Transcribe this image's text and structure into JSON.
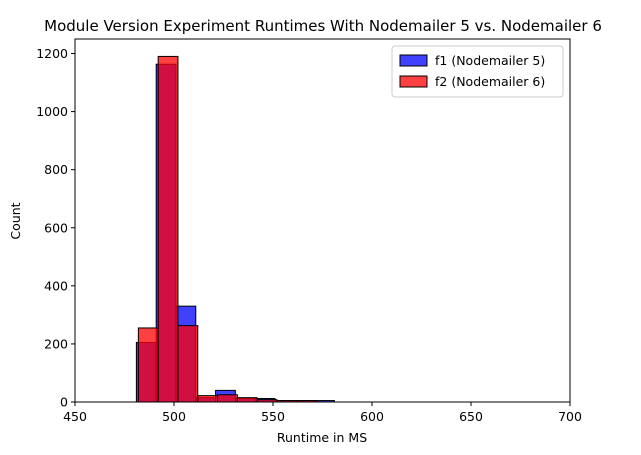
{
  "chart_data": {
    "type": "bar",
    "subtype": "overlapping-histogram",
    "title": "Module Version Experiment Runtimes With Nodemailer 5 vs. Nodemailer 6",
    "xlabel": "Runtime in MS",
    "ylabel": "Count",
    "xlim": [
      450,
      700
    ],
    "ylim": [
      0,
      1250
    ],
    "xticks": [
      450,
      500,
      550,
      600,
      650,
      700
    ],
    "yticks": [
      0,
      200,
      400,
      600,
      800,
      1000,
      1200
    ],
    "grid": false,
    "legend_position": "top-right",
    "series": [
      {
        "name": "f1 (Nodemailer 5)",
        "color": "#0000ff",
        "bins": [
          {
            "x0": 481,
            "x1": 491,
            "value": 205
          },
          {
            "x0": 491,
            "x1": 501,
            "value": 1163
          },
          {
            "x0": 501,
            "x1": 511,
            "value": 330
          },
          {
            "x0": 511,
            "x1": 521,
            "value": 15
          },
          {
            "x0": 521,
            "x1": 531,
            "value": 40
          },
          {
            "x0": 531,
            "x1": 541,
            "value": 12
          },
          {
            "x0": 541,
            "x1": 551,
            "value": 12
          },
          {
            "x0": 551,
            "x1": 561,
            "value": 5
          },
          {
            "x0": 561,
            "x1": 571,
            "value": 5
          },
          {
            "x0": 571,
            "x1": 581,
            "value": 5
          }
        ]
      },
      {
        "name": "f2 (Nodemailer 6)",
        "color": "#ff0000",
        "bins": [
          {
            "x0": 482,
            "x1": 492,
            "value": 255
          },
          {
            "x0": 492,
            "x1": 502,
            "value": 1190
          },
          {
            "x0": 502,
            "x1": 512,
            "value": 263
          },
          {
            "x0": 512,
            "x1": 522,
            "value": 22
          },
          {
            "x0": 522,
            "x1": 532,
            "value": 25
          },
          {
            "x0": 532,
            "x1": 542,
            "value": 15
          },
          {
            "x0": 542,
            "x1": 552,
            "value": 8
          },
          {
            "x0": 552,
            "x1": 562,
            "value": 5
          },
          {
            "x0": 562,
            "x1": 572,
            "value": 5
          }
        ]
      }
    ]
  }
}
